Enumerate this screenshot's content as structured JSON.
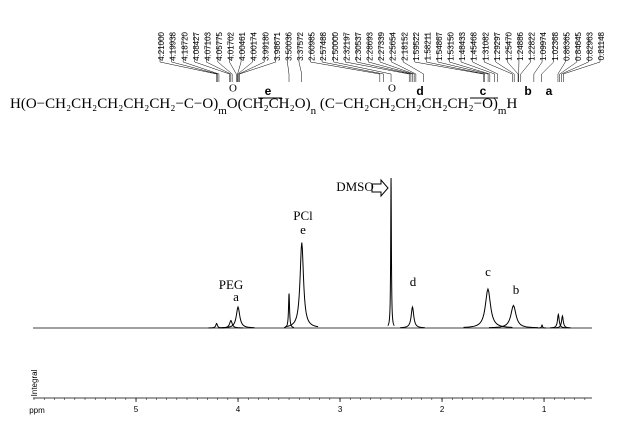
{
  "chart_data": {
    "type": "spectrum",
    "peak_labels": [
      "4.21000",
      "4.19938",
      "4.18720",
      "4.08427",
      "4.07103",
      "4.05775",
      "4.01702",
      "4.00461",
      "4.00174",
      "3.99180",
      "3.98671",
      "3.50036",
      "3.37572",
      "2.60985",
      "2.57488",
      "2.50000",
      "2.32197",
      "2.30537",
      "2.28693",
      "2.27339",
      "2.25654",
      "2.18152",
      "1.59522",
      "1.58211",
      "1.54867",
      "1.53150",
      "1.48433",
      "1.45468",
      "1.31082",
      "1.29297",
      "1.25470",
      "1.24886",
      "1.22822",
      "1.09974",
      "1.02368",
      "0.86365",
      "0.84645",
      "0.82963",
      "0.81148"
    ],
    "structure": [
      "H(O−CH₂CH₂CH₂CH₂CH₂−C−O)",
      "m",
      "O(CH₂CH₂O)",
      "n",
      " (C−CH₂CH₂CH₂CH₂CH₂−O)",
      "m",
      "H"
    ],
    "carbonyl": [
      "O",
      "O"
    ],
    "group_labels": [
      "e",
      "d",
      "c",
      "b",
      "a"
    ],
    "annotations": [
      "PEG",
      "a",
      "PCl",
      "e",
      "DMSO",
      "d",
      "c",
      "b"
    ],
    "ylabel": "Integral",
    "xlabel": "ppm",
    "xlim": [
      6.01,
      0.53
    ],
    "xticks": [
      5,
      4,
      3,
      2,
      1
    ],
    "ylim": [
      0,
      100
    ],
    "color": "#000000",
    "peaks": [
      {
        "ppm": 4.21,
        "height": 3,
        "width": 0.01
      },
      {
        "ppm": 4.07,
        "height": 5,
        "width": 0.015
      },
      {
        "ppm": 4.0,
        "height": 14,
        "width": 0.02
      },
      {
        "ppm": 3.5,
        "height": 23,
        "width": 0.006
      },
      {
        "ppm": 3.375,
        "height": 57,
        "width": 0.02
      },
      {
        "ppm": 2.5,
        "height": 100,
        "width": 0.004
      },
      {
        "ppm": 2.29,
        "height": 14,
        "width": 0.015
      },
      {
        "ppm": 1.55,
        "height": 26,
        "width": 0.03
      },
      {
        "ppm": 1.3,
        "height": 15,
        "width": 0.03
      },
      {
        "ppm": 1.02,
        "height": 2,
        "width": 0.005
      },
      {
        "ppm": 0.86,
        "height": 9,
        "width": 0.01
      },
      {
        "ppm": 0.82,
        "height": 8,
        "width": 0.01
      }
    ]
  }
}
